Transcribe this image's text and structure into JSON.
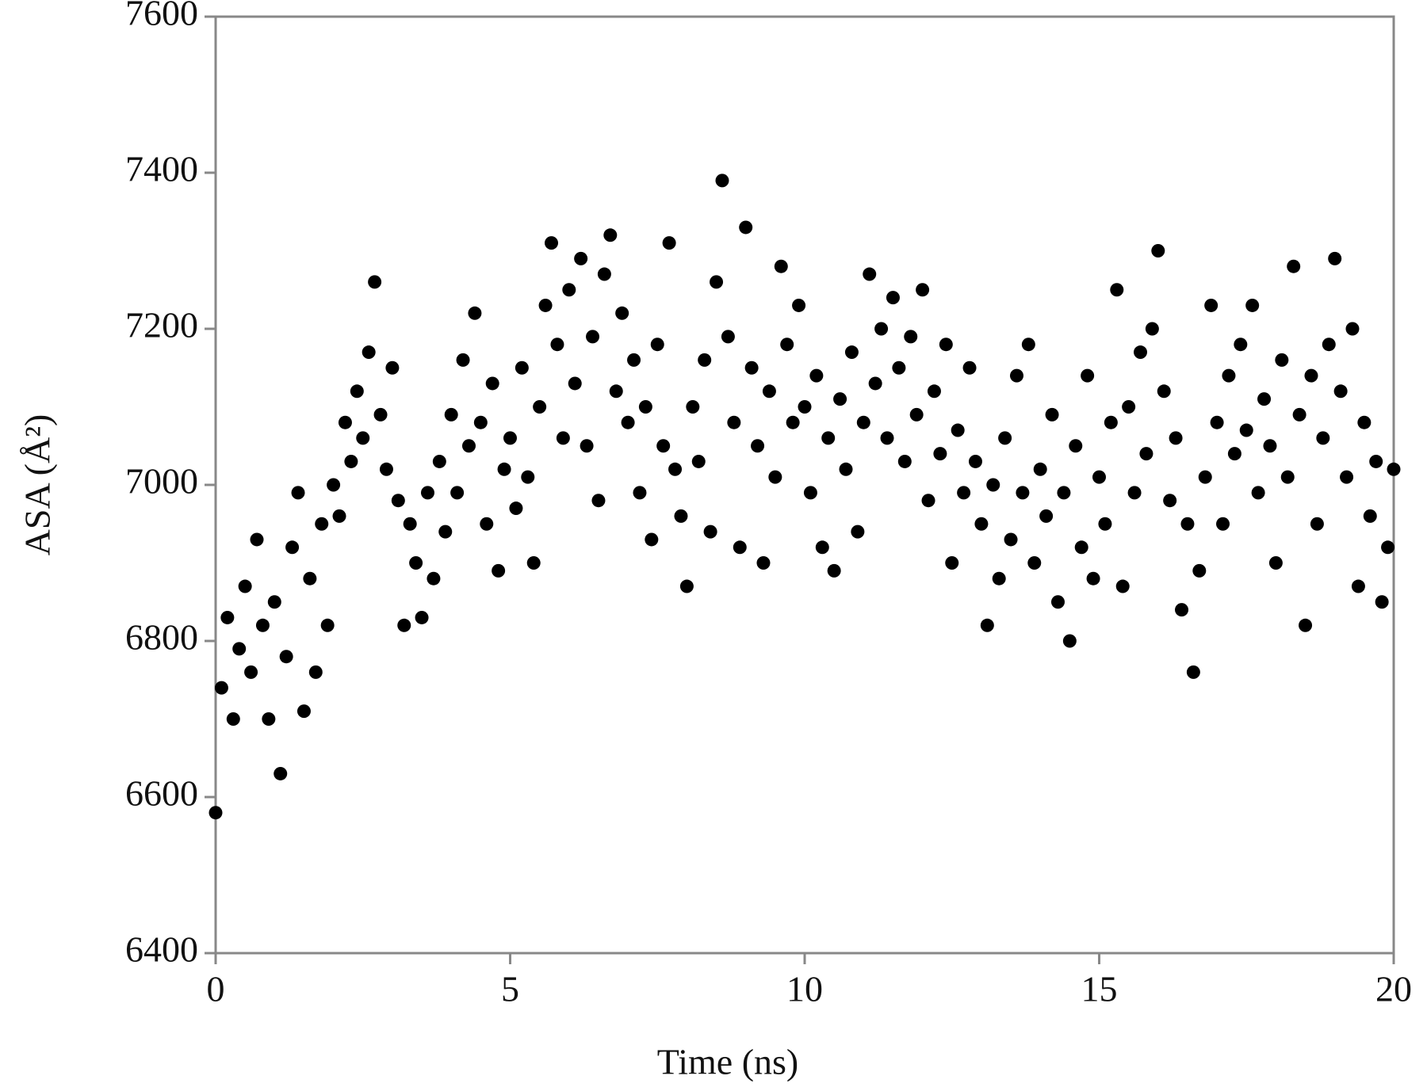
{
  "chart_data": {
    "type": "scatter",
    "xlabel": "Time (ns)",
    "ylabel": "ASA (Å²)",
    "xlim": [
      0,
      20
    ],
    "xticks": [
      0,
      5,
      10,
      15,
      20
    ],
    "ylim": [
      6400,
      7600
    ],
    "yticks": [
      6400,
      6600,
      6800,
      7000,
      7200,
      7400,
      7600
    ],
    "grid": false,
    "color": "#000000",
    "x": [
      0,
      0.1,
      0.2,
      0.3,
      0.4,
      0.5,
      0.6,
      0.7,
      0.8,
      0.9,
      1,
      1.1,
      1.2,
      1.3,
      1.4,
      1.5,
      1.6,
      1.7,
      1.8,
      1.9,
      2,
      2.1,
      2.2,
      2.3,
      2.4,
      2.5,
      2.6,
      2.7,
      2.8,
      2.9,
      3,
      3.1,
      3.2,
      3.3,
      3.4,
      3.5,
      3.6,
      3.7,
      3.8,
      3.9,
      4,
      4.1,
      4.2,
      4.3,
      4.4,
      4.5,
      4.6,
      4.7,
      4.8,
      4.9,
      5,
      5.1,
      5.2,
      5.3,
      5.4,
      5.5,
      5.6,
      5.7,
      5.8,
      5.9,
      6,
      6.1,
      6.2,
      6.3,
      6.4,
      6.5,
      6.6,
      6.7,
      6.8,
      6.9,
      7,
      7.1,
      7.2,
      7.3,
      7.4,
      7.5,
      7.6,
      7.7,
      7.8,
      7.9,
      8,
      8.1,
      8.2,
      8.3,
      8.4,
      8.5,
      8.6,
      8.7,
      8.8,
      8.9,
      9,
      9.1,
      9.2,
      9.3,
      9.4,
      9.5,
      9.6,
      9.7,
      9.8,
      9.9,
      10,
      10.1,
      10.2,
      10.3,
      10.4,
      10.5,
      10.6,
      10.7,
      10.8,
      10.9,
      11,
      11.1,
      11.2,
      11.3,
      11.4,
      11.5,
      11.6,
      11.7,
      11.8,
      11.9,
      12,
      12.1,
      12.2,
      12.3,
      12.4,
      12.5,
      12.6,
      12.7,
      12.8,
      12.9,
      13,
      13.1,
      13.2,
      13.3,
      13.4,
      13.5,
      13.6,
      13.7,
      13.8,
      13.9,
      14,
      14.1,
      14.2,
      14.3,
      14.4,
      14.5,
      14.6,
      14.7,
      14.8,
      14.9,
      15,
      15.1,
      15.2,
      15.3,
      15.4,
      15.5,
      15.6,
      15.7,
      15.8,
      15.9,
      16,
      16.1,
      16.2,
      16.3,
      16.4,
      16.5,
      16.6,
      16.7,
      16.8,
      16.9,
      17,
      17.1,
      17.2,
      17.3,
      17.4,
      17.5,
      17.6,
      17.7,
      17.8,
      17.9,
      18,
      18.1,
      18.2,
      18.3,
      18.4,
      18.5,
      18.6,
      18.7,
      18.8,
      18.9,
      19,
      19.1,
      19.2,
      19.3,
      19.4,
      19.5,
      19.6,
      19.7,
      19.8,
      19.9,
      20
    ],
    "values": [
      6580,
      6740,
      6830,
      6700,
      6790,
      6870,
      6760,
      6930,
      6820,
      6700,
      6850,
      6630,
      6780,
      6920,
      6990,
      6710,
      6880,
      6760,
      6950,
      6820,
      7000,
      6960,
      7080,
      7030,
      7120,
      7060,
      7170,
      7260,
      7090,
      7020,
      7150,
      6980,
      6820,
      6950,
      6900,
      6830,
      6990,
      6880,
      7030,
      6940,
      7090,
      6990,
      7160,
      7050,
      7220,
      7080,
      6950,
      7130,
      6890,
      7020,
      7060,
      6970,
      7150,
      7010,
      6900,
      7100,
      7230,
      7310,
      7180,
      7060,
      7250,
      7130,
      7290,
      7050,
      7190,
      6980,
      7270,
      7320,
      7120,
      7220,
      7080,
      7160,
      6990,
      7100,
      6930,
      7180,
      7050,
      7310,
      7020,
      6960,
      6870,
      7100,
      7030,
      7160,
      6940,
      7260,
      7390,
      7190,
      7080,
      6920,
      7330,
      7150,
      7050,
      6900,
      7120,
      7010,
      7280,
      7180,
      7080,
      7230,
      7100,
      6990,
      7140,
      6920,
      7060,
      6890,
      7110,
      7020,
      7170,
      6940,
      7080,
      7270,
      7130,
      7200,
      7060,
      7240,
      7150,
      7030,
      7190,
      7090,
      7250,
      6980,
      7120,
      7040,
      7180,
      6900,
      7070,
      6990,
      7150,
      7030,
      6950,
      6820,
      7000,
      6880,
      7060,
      6930,
      7140,
      6990,
      7180,
      6900,
      7020,
      6960,
      7090,
      6850,
      6990,
      6800,
      7050,
      6920,
      7140,
      6880,
      7010,
      6950,
      7080,
      7250,
      6870,
      7100,
      6990,
      7170,
      7040,
      7200,
      7300,
      7120,
      6980,
      7060,
      6840,
      6950,
      6760,
      6890,
      7010,
      7230,
      7080,
      6950,
      7140,
      7040,
      7180,
      7070,
      7230,
      6990,
      7110,
      7050,
      6900,
      7160,
      7010,
      7280,
      7090,
      6820,
      7140,
      6950,
      7060,
      7180,
      7290,
      7120,
      7010,
      7200,
      6870,
      7080,
      6960,
      7030,
      6850,
      6920,
      7020
    ]
  }
}
